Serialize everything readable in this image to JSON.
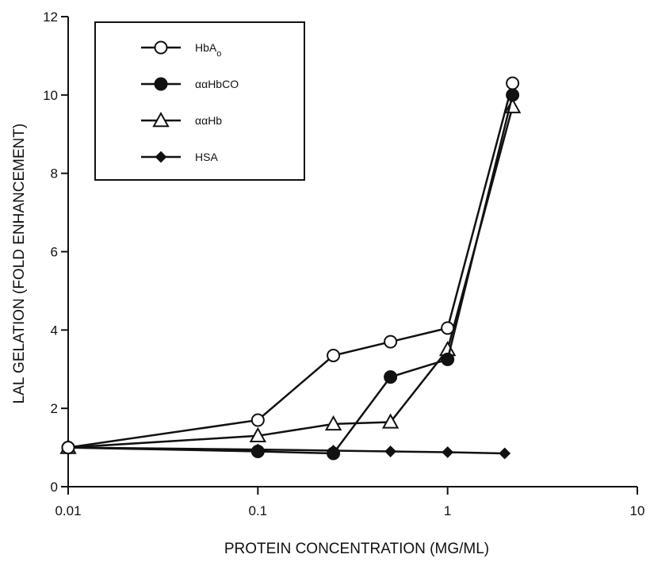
{
  "chart_data": {
    "type": "line",
    "xlabel": "PROTEIN CONCENTRATION (MG/ML)",
    "ylabel": "LAL GELATION (FOLD ENHANCEMENT)",
    "xscale": "log",
    "xlim": [
      0.01,
      10
    ],
    "ylim": [
      0,
      12
    ],
    "xticks": [
      0.01,
      0.1,
      1,
      10
    ],
    "xtick_labels": [
      "0.01",
      "0.1",
      "1",
      "10"
    ],
    "yticks": [
      0,
      2,
      4,
      6,
      8,
      10,
      12
    ],
    "ytick_labels": [
      "0",
      "2",
      "4",
      "6",
      "8",
      "10",
      "12"
    ],
    "legend_position": "top-left",
    "series": [
      {
        "name": "HbA",
        "name_subscript": "o",
        "marker": "open-circle",
        "points": [
          [
            0.01,
            1.0
          ],
          [
            0.1,
            1.7
          ],
          [
            0.25,
            3.35
          ],
          [
            0.5,
            3.7
          ],
          [
            1.0,
            4.05
          ],
          [
            2.2,
            10.3
          ]
        ]
      },
      {
        "name": "ααHbCO",
        "marker": "filled-circle",
        "points": [
          [
            0.01,
            1.0
          ],
          [
            0.1,
            0.9
          ],
          [
            0.25,
            0.85
          ],
          [
            0.5,
            2.8
          ],
          [
            1.0,
            3.25
          ],
          [
            2.2,
            10.0
          ]
        ]
      },
      {
        "name": "ααHb",
        "marker": "open-triangle",
        "points": [
          [
            0.01,
            1.0
          ],
          [
            0.1,
            1.3
          ],
          [
            0.25,
            1.6
          ],
          [
            0.5,
            1.65
          ],
          [
            1.0,
            3.5
          ],
          [
            2.2,
            9.7
          ]
        ]
      },
      {
        "name": "HSA",
        "marker": "filled-diamond",
        "points": [
          [
            0.01,
            1.0
          ],
          [
            0.1,
            0.95
          ],
          [
            0.25,
            0.92
          ],
          [
            0.5,
            0.9
          ],
          [
            1.0,
            0.88
          ],
          [
            2.0,
            0.85
          ]
        ]
      }
    ]
  }
}
